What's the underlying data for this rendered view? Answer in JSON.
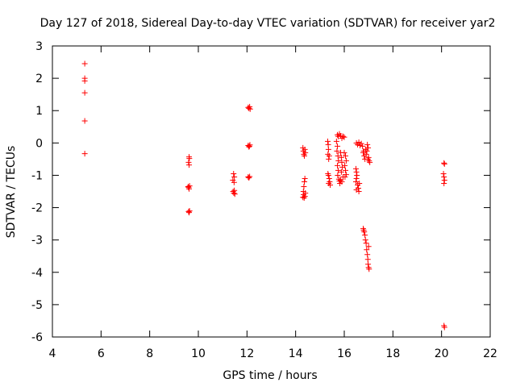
{
  "chart_data": {
    "type": "scatter",
    "title": "Day 127 of 2018, Sidereal Day-to-day VTEC variation (SDTVAR) for receiver yar2",
    "xlabel": "GPS time / hours",
    "ylabel": "SDTVAR / TECUs",
    "xlim": [
      4,
      22
    ],
    "ylim": [
      -6,
      3
    ],
    "xticks": [
      4,
      6,
      8,
      10,
      12,
      14,
      16,
      18,
      20,
      22
    ],
    "yticks": [
      3,
      2,
      1,
      0,
      -1,
      -2,
      -3,
      -4,
      -5,
      -6
    ],
    "xtick_labels": [
      "4",
      "6",
      "8",
      "10",
      "12",
      "14",
      "16",
      "18",
      "20",
      "22"
    ],
    "ytick_labels": [
      "3",
      "2",
      "1",
      "0",
      "-1",
      "-2",
      "-3",
      "-4",
      "-5",
      "-6"
    ],
    "grid": false,
    "marker": "+",
    "colors": {
      "points": "#ff0000",
      "axes": "#000000",
      "background": "#ffffff"
    },
    "series": [
      {
        "name": "SDTVAR",
        "points": [
          [
            5.33,
            2.45
          ],
          [
            5.33,
            2.0
          ],
          [
            5.33,
            1.92
          ],
          [
            5.33,
            1.55
          ],
          [
            5.33,
            0.68
          ],
          [
            5.33,
            -0.33
          ],
          [
            9.62,
            -0.43
          ],
          [
            9.63,
            -0.48
          ],
          [
            9.6,
            -0.6
          ],
          [
            9.62,
            -0.68
          ],
          [
            9.58,
            -1.35
          ],
          [
            9.6,
            -1.38
          ],
          [
            9.62,
            -1.42
          ],
          [
            9.64,
            -1.33
          ],
          [
            9.6,
            -2.12
          ],
          [
            9.62,
            -2.15
          ],
          [
            9.64,
            -2.1
          ],
          [
            11.45,
            -0.95
          ],
          [
            11.48,
            -1.05
          ],
          [
            11.42,
            -1.15
          ],
          [
            11.47,
            -1.22
          ],
          [
            11.43,
            -1.5
          ],
          [
            11.46,
            -1.55
          ],
          [
            11.5,
            -1.58
          ],
          [
            11.48,
            -1.47
          ],
          [
            12.05,
            1.1
          ],
          [
            12.08,
            1.07
          ],
          [
            12.11,
            1.12
          ],
          [
            12.13,
            1.05
          ],
          [
            12.05,
            -0.08
          ],
          [
            12.08,
            -0.12
          ],
          [
            12.1,
            -0.1
          ],
          [
            12.12,
            -0.06
          ],
          [
            12.05,
            -1.05
          ],
          [
            12.08,
            -1.08
          ],
          [
            12.11,
            -1.04
          ],
          [
            14.3,
            -0.15
          ],
          [
            14.32,
            -0.25
          ],
          [
            14.34,
            -0.35
          ],
          [
            14.36,
            -0.4
          ],
          [
            14.38,
            -0.2
          ],
          [
            14.4,
            -0.3
          ],
          [
            14.38,
            -1.1
          ],
          [
            14.36,
            -1.2
          ],
          [
            14.34,
            -1.35
          ],
          [
            14.32,
            -1.5
          ],
          [
            14.33,
            -1.6
          ],
          [
            14.35,
            -1.7
          ],
          [
            14.38,
            -1.65
          ],
          [
            14.4,
            -1.55
          ],
          [
            14.3,
            -1.68
          ],
          [
            15.32,
            0.05
          ],
          [
            15.34,
            -0.05
          ],
          [
            15.35,
            -0.2
          ],
          [
            15.33,
            -0.35
          ],
          [
            15.36,
            -0.5
          ],
          [
            15.38,
            -0.4
          ],
          [
            15.35,
            -1.0
          ],
          [
            15.38,
            -1.1
          ],
          [
            15.4,
            -1.2
          ],
          [
            15.36,
            -1.25
          ],
          [
            15.42,
            -1.3
          ],
          [
            15.33,
            -0.95
          ],
          [
            15.72,
            0.25
          ],
          [
            15.75,
            0.2
          ],
          [
            15.8,
            0.28
          ],
          [
            15.85,
            0.22
          ],
          [
            15.9,
            0.15
          ],
          [
            15.95,
            0.2
          ],
          [
            16.0,
            0.18
          ],
          [
            15.68,
            0.05
          ],
          [
            15.72,
            -0.1
          ],
          [
            15.7,
            -0.25
          ],
          [
            15.74,
            -0.4
          ],
          [
            15.76,
            -0.55
          ],
          [
            15.72,
            -0.7
          ],
          [
            15.75,
            -0.85
          ],
          [
            15.73,
            -1.0
          ],
          [
            15.78,
            -1.12
          ],
          [
            15.8,
            -1.18
          ],
          [
            15.85,
            -0.3
          ],
          [
            15.88,
            -0.45
          ],
          [
            15.9,
            -0.6
          ],
          [
            15.92,
            -0.75
          ],
          [
            15.88,
            -0.9
          ],
          [
            15.95,
            -1.05
          ],
          [
            15.9,
            -1.2
          ],
          [
            15.85,
            -1.15
          ],
          [
            15.82,
            -1.25
          ],
          [
            16.0,
            -0.3
          ],
          [
            16.05,
            -0.4
          ],
          [
            16.08,
            -0.55
          ],
          [
            16.02,
            -0.7
          ],
          [
            16.05,
            -0.85
          ],
          [
            16.08,
            -0.98
          ],
          [
            16.03,
            -1.05
          ],
          [
            16.5,
            0.0
          ],
          [
            16.55,
            -0.05
          ],
          [
            16.6,
            0.02
          ],
          [
            16.65,
            -0.08
          ],
          [
            16.7,
            -0.02
          ],
          [
            16.48,
            -0.8
          ],
          [
            16.5,
            -0.9
          ],
          [
            16.52,
            -1.0
          ],
          [
            16.5,
            -1.1
          ],
          [
            16.48,
            -1.2
          ],
          [
            16.55,
            -1.3
          ],
          [
            16.5,
            -1.45
          ],
          [
            16.6,
            -1.5
          ],
          [
            16.58,
            -1.4
          ],
          [
            16.62,
            -1.25
          ],
          [
            16.75,
            -0.1
          ],
          [
            16.8,
            -0.25
          ],
          [
            16.82,
            -0.4
          ],
          [
            16.85,
            -0.5
          ],
          [
            16.78,
            -0.3
          ],
          [
            16.88,
            -0.2
          ],
          [
            16.9,
            -0.35
          ],
          [
            16.95,
            -0.05
          ],
          [
            16.98,
            -0.15
          ],
          [
            17.0,
            -0.45
          ],
          [
            17.02,
            -0.55
          ],
          [
            17.05,
            -0.6
          ],
          [
            16.97,
            -0.5
          ],
          [
            16.93,
            -0.25
          ],
          [
            16.78,
            -2.65
          ],
          [
            16.8,
            -2.7
          ],
          [
            16.82,
            -2.75
          ],
          [
            16.85,
            -2.85
          ],
          [
            16.87,
            -3.0
          ],
          [
            16.9,
            -3.1
          ],
          [
            16.92,
            -3.3
          ],
          [
            16.95,
            -3.45
          ],
          [
            16.97,
            -3.6
          ],
          [
            16.98,
            -3.75
          ],
          [
            17.0,
            -3.85
          ],
          [
            17.02,
            -3.9
          ],
          [
            17.0,
            -3.2
          ],
          [
            20.1,
            -0.62
          ],
          [
            20.12,
            -0.65
          ],
          [
            20.08,
            -0.95
          ],
          [
            20.1,
            -1.05
          ],
          [
            20.12,
            -1.15
          ],
          [
            20.1,
            -1.25
          ],
          [
            20.1,
            -5.65
          ],
          [
            20.12,
            -5.7
          ]
        ]
      }
    ]
  }
}
